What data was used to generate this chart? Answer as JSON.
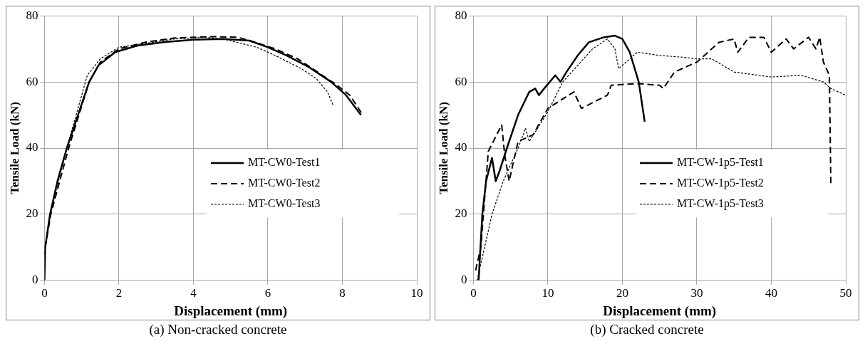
{
  "chart_data": [
    {
      "type": "line",
      "title": "(a) Non-cracked concrete",
      "xlabel": "Displacement (mm)",
      "ylabel": "Tensile Load (kN)",
      "xlim": [
        0,
        10
      ],
      "xticks": [
        0,
        2,
        4,
        6,
        8,
        10
      ],
      "ylim": [
        0,
        80
      ],
      "yticks": [
        0,
        20,
        40,
        60,
        80
      ],
      "grid": true,
      "legend": "right",
      "marker": "none",
      "series": [
        {
          "name": "MT-CW0-Test1",
          "color": "#000000",
          "line_style": "solid",
          "x": [
            0,
            0.02,
            0.15,
            0.35,
            0.6,
            0.9,
            1.2,
            1.45,
            1.9,
            2.5,
            3.2,
            4,
            4.8,
            5.5,
            6,
            6.5,
            7.1,
            7.7,
            8.1,
            8.5
          ],
          "values": [
            0,
            10,
            20,
            30,
            40,
            50,
            60,
            65,
            69,
            71,
            72,
            72.8,
            73,
            72.5,
            70.5,
            68,
            64.5,
            60,
            56,
            50
          ]
        },
        {
          "name": "MT-CW0-Test2",
          "color": "#000000",
          "line_style": "dashed",
          "x": [
            0.02,
            0.17,
            0.65,
            1.2,
            1.5,
            2,
            2.7,
            3.5,
            4.5,
            5.2,
            5.8,
            6.2,
            6.8,
            7.2,
            7.8,
            8.2,
            8.55
          ],
          "values": [
            10,
            20,
            40,
            60,
            66,
            70,
            72,
            73.3,
            73.7,
            73.5,
            71.5,
            70,
            67,
            64,
            59.5,
            56,
            50
          ]
        },
        {
          "name": "MT-CW0-Test3",
          "color": "#000000",
          "line_style": "dotted",
          "x": [
            0,
            0.15,
            0.6,
            1.15,
            1.5,
            2,
            3.5,
            4.3,
            4.8,
            5.7,
            6.2,
            6.9,
            7.3,
            7.6,
            7.75
          ],
          "values": [
            8,
            20,
            40,
            62,
            67,
            70.5,
            73,
            73.5,
            73,
            70.5,
            68,
            64,
            61,
            57,
            53
          ]
        }
      ]
    },
    {
      "type": "line",
      "title": "(b) Cracked concrete",
      "xlabel": "Displacement (mm)",
      "ylabel": "Tensile Load (kN)",
      "xlim": [
        0,
        50
      ],
      "xticks": [
        0,
        10,
        20,
        30,
        40,
        50
      ],
      "ylim": [
        0,
        80
      ],
      "yticks": [
        0,
        20,
        40,
        60,
        80
      ],
      "grid": true,
      "legend": "right",
      "marker": "none",
      "series": [
        {
          "name": "MT-CW-1p5-Test1",
          "color": "#000000",
          "line_style": "solid",
          "x": [
            0.7,
            1.2,
            1.7,
            2.5,
            3,
            3.5,
            4.5,
            6,
            7.5,
            8.3,
            8.8,
            9.5,
            11,
            11.7,
            12.5,
            14,
            15.5,
            17.5,
            19,
            20,
            21,
            22.2,
            23
          ],
          "values": [
            0,
            20,
            30,
            37,
            30,
            33,
            40,
            50,
            57,
            58,
            56,
            58,
            62,
            60,
            63,
            68,
            72,
            73.5,
            74,
            73,
            69,
            60,
            48
          ]
        },
        {
          "name": "MT-CW-1p5-Test2",
          "color": "#000000",
          "line_style": "dashed",
          "x": [
            0.3,
            1,
            2,
            3.8,
            4.2,
            4.8,
            6,
            8,
            10,
            13.5,
            14.5,
            18,
            18.5,
            22,
            25,
            25.5,
            27,
            30,
            33,
            35,
            35.5,
            37,
            39,
            40,
            42,
            43,
            45,
            46,
            46.5,
            47,
            47.8,
            48
          ],
          "values": [
            3,
            10,
            39,
            47,
            38,
            30,
            42,
            44,
            52,
            57,
            52,
            56,
            59,
            59.5,
            59,
            58,
            63,
            66,
            72,
            73,
            69,
            73.5,
            73.5,
            69,
            73,
            70,
            73.5,
            70,
            73.5,
            66,
            62,
            29
          ]
        },
        {
          "name": "MT-CW-1p5-Test3",
          "color": "#000000",
          "line_style": "dotted",
          "x": [
            0.5,
            1.5,
            2.5,
            4,
            6,
            7,
            7.5,
            10,
            12,
            16,
            18,
            19,
            19.5,
            20.5,
            22,
            25,
            28,
            30,
            32,
            35,
            40,
            44,
            47,
            48,
            50
          ],
          "values": [
            0,
            10,
            20,
            30,
            40,
            46,
            42,
            51,
            60,
            70,
            73,
            70,
            64,
            66,
            69,
            68,
            67.5,
            67,
            67,
            63,
            61.5,
            62,
            60,
            58,
            56
          ]
        }
      ]
    }
  ]
}
